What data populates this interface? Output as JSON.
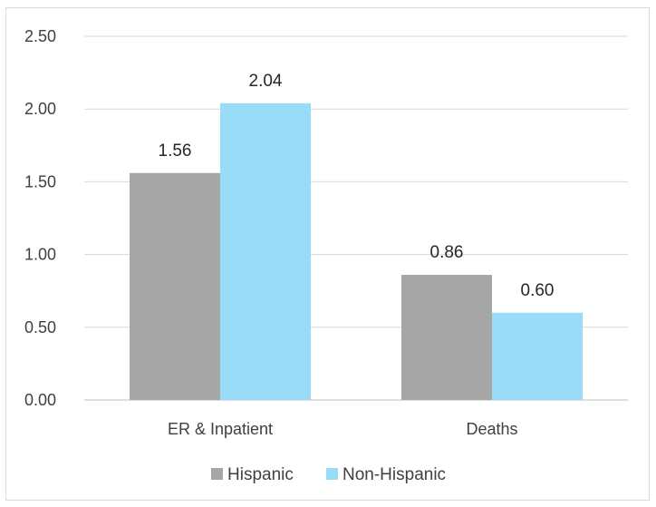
{
  "chart_data": {
    "type": "bar",
    "categories": [
      "ER & Inpatient",
      "Deaths"
    ],
    "series": [
      {
        "name": "Hispanic",
        "values": [
          1.56,
          0.86
        ],
        "color": "#a6a6a6"
      },
      {
        "name": "Non-Hispanic",
        "values": [
          2.04,
          0.6
        ],
        "color": "#99dcf7"
      }
    ],
    "data_labels": [
      [
        "1.56",
        "0.86"
      ],
      [
        "2.04",
        "0.60"
      ]
    ],
    "yticks": [
      "0.00",
      "0.50",
      "1.00",
      "1.50",
      "2.00",
      "2.50"
    ],
    "ylim": [
      0,
      2.5
    ],
    "title": "",
    "xlabel": "",
    "ylabel": "",
    "grid": true,
    "legend_position": "bottom"
  }
}
